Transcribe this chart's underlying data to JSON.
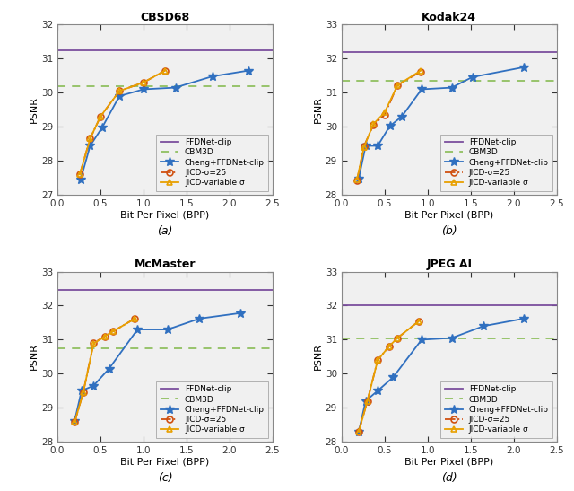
{
  "subplots": [
    {
      "title": "CBSD68",
      "label": "(a)",
      "ylim": [
        27,
        32
      ],
      "yticks": [
        27,
        28,
        29,
        30,
        31,
        32
      ],
      "ffdnet_clip": 31.25,
      "cbm3d": 30.18,
      "cheng": {
        "bpp": [
          0.27,
          0.38,
          0.52,
          0.72,
          1.0,
          1.37,
          1.8,
          2.22
        ],
        "psnr": [
          27.45,
          28.44,
          28.98,
          29.9,
          30.1,
          30.15,
          30.48,
          30.65
        ]
      },
      "jicd_sigma25": {
        "bpp": [
          0.26,
          0.38,
          0.5,
          0.72,
          1.0,
          1.25
        ],
        "psnr": [
          27.6,
          28.65,
          29.3,
          30.05,
          30.3,
          30.65
        ]
      },
      "jicd_variable": {
        "bpp": [
          0.26,
          0.38,
          0.5,
          0.72,
          1.0,
          1.25
        ],
        "psnr": [
          27.6,
          28.65,
          29.3,
          30.05,
          30.3,
          30.65
        ]
      }
    },
    {
      "title": "Kodak24",
      "label": "(b)",
      "ylim": [
        28,
        33
      ],
      "yticks": [
        28,
        29,
        30,
        31,
        32,
        33
      ],
      "ffdnet_clip": 32.2,
      "cbm3d": 31.35,
      "cheng": {
        "bpp": [
          0.2,
          0.28,
          0.42,
          0.56,
          0.7,
          0.93,
          1.28,
          1.52,
          2.12
        ],
        "psnr": [
          28.48,
          29.44,
          29.44,
          30.02,
          30.3,
          31.1,
          31.15,
          31.46,
          31.75
        ]
      },
      "jicd_sigma25": {
        "bpp": [
          0.18,
          0.26,
          0.37,
          0.5,
          0.65,
          0.92
        ],
        "psnr": [
          28.43,
          29.43,
          30.05,
          30.35,
          31.22,
          31.62
        ]
      },
      "jicd_variable": {
        "bpp": [
          0.18,
          0.26,
          0.37,
          0.5,
          0.65,
          0.92
        ],
        "psnr": [
          28.45,
          29.4,
          30.08,
          30.42,
          31.22,
          31.65
        ]
      }
    },
    {
      "title": "McMaster",
      "label": "(c)",
      "ylim": [
        28,
        33
      ],
      "yticks": [
        28,
        29,
        30,
        31,
        32,
        33
      ],
      "ffdnet_clip": 32.45,
      "cbm3d": 30.75,
      "cheng": {
        "bpp": [
          0.2,
          0.28,
          0.42,
          0.6,
          0.93,
          1.28,
          1.65,
          2.12
        ],
        "psnr": [
          28.62,
          29.5,
          29.65,
          30.15,
          31.3,
          31.3,
          31.62,
          31.78
        ]
      },
      "jicd_sigma25": {
        "bpp": [
          0.2,
          0.3,
          0.42,
          0.55,
          0.65,
          0.9
        ],
        "psnr": [
          28.58,
          29.45,
          30.9,
          31.1,
          31.25,
          31.62
        ]
      },
      "jicd_variable": {
        "bpp": [
          0.2,
          0.3,
          0.42,
          0.55,
          0.65,
          0.9
        ],
        "psnr": [
          28.58,
          29.45,
          30.88,
          31.1,
          31.25,
          31.62
        ]
      }
    },
    {
      "title": "JPEG AI",
      "label": "(d)",
      "ylim": [
        28,
        33
      ],
      "yticks": [
        28,
        29,
        30,
        31,
        32,
        33
      ],
      "ffdnet_clip": 32.0,
      "cbm3d": 31.05,
      "cheng": {
        "bpp": [
          0.2,
          0.28,
          0.42,
          0.6,
          0.93,
          1.28,
          1.65,
          2.12
        ],
        "psnr": [
          28.3,
          29.2,
          29.5,
          29.9,
          31.0,
          31.05,
          31.4,
          31.62
        ]
      },
      "jicd_sigma25": {
        "bpp": [
          0.2,
          0.3,
          0.42,
          0.55,
          0.65,
          0.9
        ],
        "psnr": [
          28.3,
          29.2,
          30.4,
          30.8,
          31.05,
          31.55
        ]
      },
      "jicd_variable": {
        "bpp": [
          0.2,
          0.3,
          0.42,
          0.55,
          0.65,
          0.9
        ],
        "psnr": [
          28.3,
          29.2,
          30.4,
          30.8,
          31.05,
          31.55
        ]
      }
    }
  ],
  "colors": {
    "ffdnet_clip": "#7B4F9E",
    "cbm3d": "#90C060",
    "cheng": "#3070C0",
    "jicd_sigma25": "#D05010",
    "jicd_variable": "#E8A000"
  },
  "legend_labels": {
    "ffdnet_clip": "FFDNet-clip",
    "cbm3d": "CBM3D",
    "cheng": "Cheng+FFDNet-clip",
    "jicd_sigma25": "JICD-σ=25",
    "jicd_variable": "JICD-variable σ"
  },
  "xlabel": "Bit Per Pixel (BPP)",
  "ylabel": "PSNR",
  "xlim": [
    0,
    2.5
  ],
  "bg_color": "#F0F0F0",
  "fig_bg": "#FFFFFF"
}
